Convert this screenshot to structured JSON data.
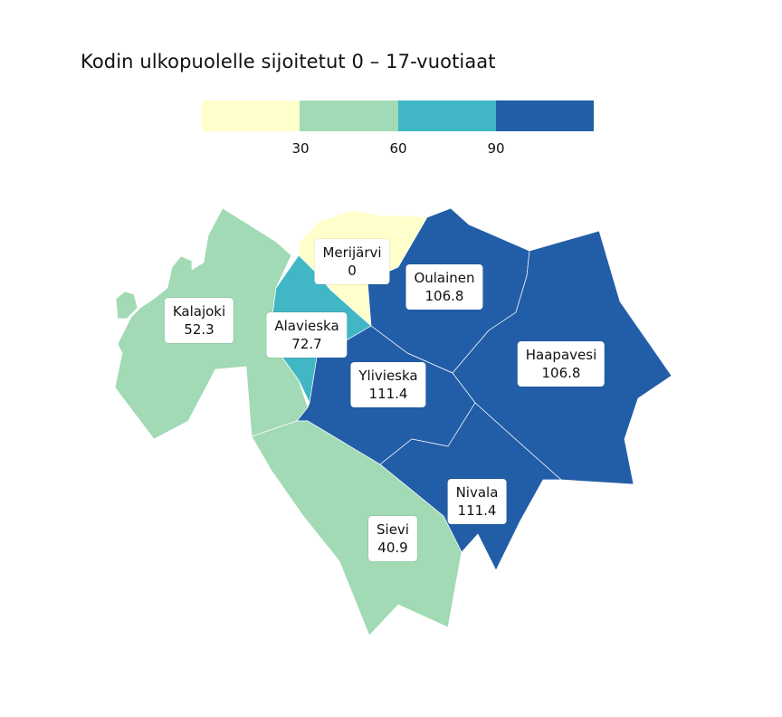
{
  "title": "Kodin ulkopuolelle sijoitetut 0 – 17-vuotiaat",
  "legend": {
    "colors": [
      "#ffffcc",
      "#a1dab4",
      "#41b6c4",
      "#225ea8"
    ],
    "ticks": [
      "30",
      "60",
      "90"
    ]
  },
  "regions": [
    {
      "name": "Kalajoki",
      "value": "52.3",
      "color": "#a1dab4"
    },
    {
      "name": "Merijärvi",
      "value": "0",
      "color": "#ffffcc"
    },
    {
      "name": "Oulainen",
      "value": "106.8",
      "color": "#225ea8"
    },
    {
      "name": "Alavieska",
      "value": "72.7",
      "color": "#41b6c4"
    },
    {
      "name": "Haapavesi",
      "value": "106.8",
      "color": "#225ea8"
    },
    {
      "name": "Ylivieska",
      "value": "111.4",
      "color": "#225ea8"
    },
    {
      "name": "Nivala",
      "value": "111.4",
      "color": "#225ea8"
    },
    {
      "name": "Sievi",
      "value": "40.9",
      "color": "#a1dab4"
    }
  ]
}
